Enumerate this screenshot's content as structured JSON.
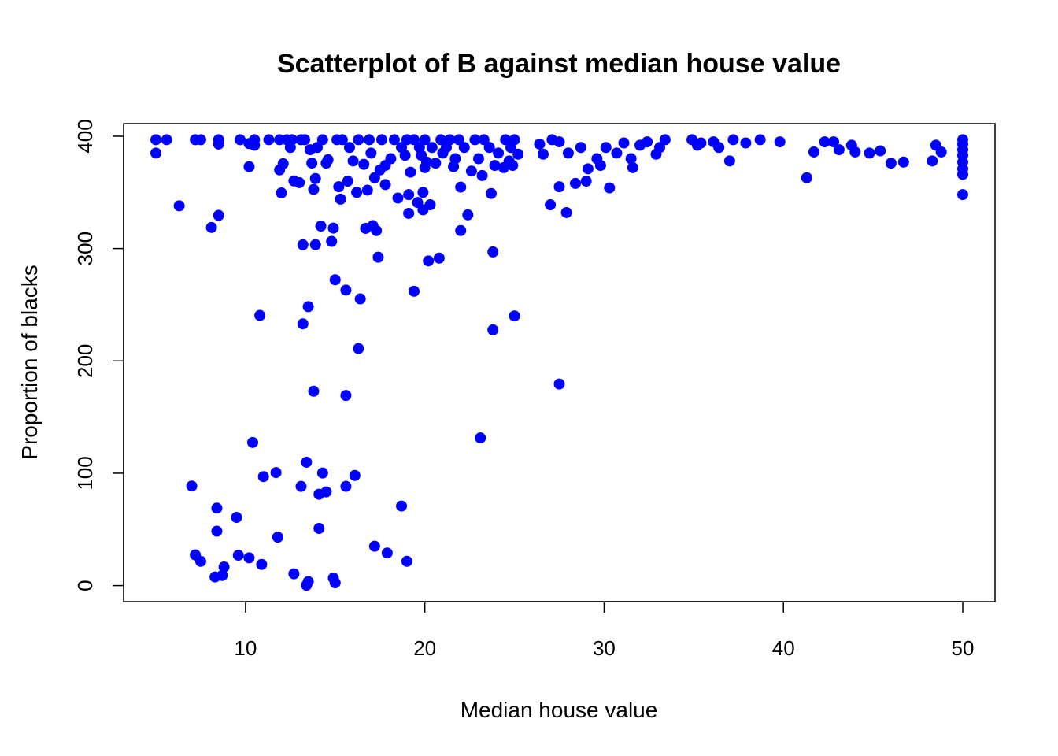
{
  "chart_data": {
    "type": "scatter",
    "title": "Scatterplot of B against median house value",
    "xlabel": "Median house value",
    "ylabel": "Proportion of blacks",
    "xlim": [
      3.2,
      51.8
    ],
    "ylim": [
      -14.3,
      411.2
    ],
    "xticks": [
      10,
      20,
      30,
      40,
      50
    ],
    "yticks": [
      0,
      100,
      200,
      300,
      400
    ],
    "grid": false,
    "legend": "none",
    "point_color": "#0000ff",
    "points": [
      [
        5.0,
        396.9
      ],
      [
        5.0,
        385.0
      ],
      [
        5.6,
        396.9
      ],
      [
        6.3,
        338.0
      ],
      [
        7.0,
        88.6
      ],
      [
        7.2,
        27.3
      ],
      [
        7.2,
        396.9
      ],
      [
        7.5,
        396.9
      ],
      [
        7.5,
        21.6
      ],
      [
        8.1,
        318.8
      ],
      [
        8.3,
        7.7
      ],
      [
        8.4,
        68.9
      ],
      [
        8.4,
        48.4
      ],
      [
        8.5,
        396.9
      ],
      [
        8.5,
        329.5
      ],
      [
        8.5,
        393.0
      ],
      [
        8.7,
        9.0
      ],
      [
        8.8,
        16.5
      ],
      [
        9.5,
        60.7
      ],
      [
        9.6,
        27.0
      ],
      [
        9.7,
        396.9
      ],
      [
        10.2,
        24.7
      ],
      [
        10.2,
        372.9
      ],
      [
        10.2,
        393.5
      ],
      [
        10.4,
        127.4
      ],
      [
        10.5,
        392.0
      ],
      [
        10.5,
        396.9
      ],
      [
        10.8,
        240.5
      ],
      [
        10.9,
        18.8
      ],
      [
        11.0,
        97.0
      ],
      [
        11.3,
        396.9
      ],
      [
        11.7,
        100.6
      ],
      [
        11.8,
        43.1
      ],
      [
        11.9,
        396.9
      ],
      [
        11.9,
        370.0
      ],
      [
        12.0,
        349.5
      ],
      [
        12.1,
        375.5
      ],
      [
        12.3,
        396.9
      ],
      [
        12.5,
        390.0
      ],
      [
        12.6,
        396.9
      ],
      [
        12.7,
        360.2
      ],
      [
        12.7,
        10.5
      ],
      [
        13.0,
        358.7
      ],
      [
        13.1,
        88.3
      ],
      [
        13.1,
        396.9
      ],
      [
        13.2,
        233.0
      ],
      [
        13.2,
        303.4
      ],
      [
        13.3,
        396.9
      ],
      [
        13.4,
        0.3
      ],
      [
        13.4,
        109.8
      ],
      [
        13.5,
        3.5
      ],
      [
        13.5,
        248.3
      ],
      [
        13.6,
        388.0
      ],
      [
        13.7,
        376.1
      ],
      [
        13.8,
        352.6
      ],
      [
        13.8,
        173.0
      ],
      [
        13.9,
        303.5
      ],
      [
        13.9,
        362.3
      ],
      [
        14.0,
        390.0
      ],
      [
        14.1,
        81.3
      ],
      [
        14.1,
        50.9
      ],
      [
        14.2,
        320.0
      ],
      [
        14.3,
        100.2
      ],
      [
        14.3,
        396.9
      ],
      [
        14.5,
        83.4
      ],
      [
        14.5,
        376.0
      ],
      [
        14.6,
        379.0
      ],
      [
        14.8,
        306.4
      ],
      [
        14.9,
        6.7
      ],
      [
        14.9,
        318.2
      ],
      [
        15.0,
        2.5
      ],
      [
        15.0,
        272.2
      ],
      [
        15.1,
        396.9
      ],
      [
        15.2,
        355.0
      ],
      [
        15.3,
        344.0
      ],
      [
        15.4,
        396.9
      ],
      [
        15.6,
        88.3
      ],
      [
        15.6,
        169.3
      ],
      [
        15.6,
        263.0
      ],
      [
        15.7,
        360.0
      ],
      [
        15.8,
        390.0
      ],
      [
        16.0,
        378.0
      ],
      [
        16.1,
        98.0
      ],
      [
        16.2,
        350.0
      ],
      [
        16.3,
        211.0
      ],
      [
        16.3,
        396.9
      ],
      [
        16.4,
        255.2
      ],
      [
        16.6,
        375.0
      ],
      [
        16.7,
        318.0
      ],
      [
        16.8,
        352.0
      ],
      [
        16.9,
        396.9
      ],
      [
        17.0,
        385.0
      ],
      [
        17.1,
        320.5
      ],
      [
        17.2,
        363.0
      ],
      [
        17.2,
        35.0
      ],
      [
        17.3,
        316.0
      ],
      [
        17.4,
        292.3
      ],
      [
        17.5,
        370.0
      ],
      [
        17.6,
        396.9
      ],
      [
        17.8,
        357.0
      ],
      [
        17.8,
        374.0
      ],
      [
        17.9,
        29.0
      ],
      [
        18.1,
        380.0
      ],
      [
        18.3,
        396.9
      ],
      [
        18.5,
        345.0
      ],
      [
        18.7,
        70.8
      ],
      [
        18.7,
        390.0
      ],
      [
        18.9,
        383.0
      ],
      [
        19.0,
        396.9
      ],
      [
        19.0,
        21.6
      ],
      [
        19.1,
        331.3
      ],
      [
        19.1,
        348.0
      ],
      [
        19.2,
        368.0
      ],
      [
        19.4,
        262.0
      ],
      [
        19.4,
        396.9
      ],
      [
        19.6,
        341.0
      ],
      [
        19.7,
        390.0
      ],
      [
        19.8,
        383.0
      ],
      [
        19.9,
        350.0
      ],
      [
        19.9,
        334.5
      ],
      [
        20.0,
        372.0
      ],
      [
        20.0,
        396.9
      ],
      [
        20.1,
        377.0
      ],
      [
        20.2,
        289.0
      ],
      [
        20.3,
        339.0
      ],
      [
        20.4,
        390.0
      ],
      [
        20.6,
        376.0
      ],
      [
        20.8,
        291.5
      ],
      [
        20.9,
        396.9
      ],
      [
        21.0,
        385.0
      ],
      [
        21.2,
        390.0
      ],
      [
        21.4,
        396.9
      ],
      [
        21.6,
        373.0
      ],
      [
        21.7,
        380.0
      ],
      [
        21.9,
        396.9
      ],
      [
        22.0,
        316.0
      ],
      [
        22.0,
        354.7
      ],
      [
        22.2,
        390.0
      ],
      [
        22.4,
        330.0
      ],
      [
        22.6,
        369.0
      ],
      [
        22.8,
        396.9
      ],
      [
        23.0,
        380.0
      ],
      [
        23.1,
        131.4
      ],
      [
        23.2,
        365.0
      ],
      [
        23.3,
        396.9
      ],
      [
        23.6,
        390.0
      ],
      [
        23.7,
        349.0
      ],
      [
        23.8,
        297.0
      ],
      [
        23.8,
        227.6
      ],
      [
        23.9,
        374.0
      ],
      [
        24.1,
        385.0
      ],
      [
        24.4,
        372.0
      ],
      [
        24.5,
        396.9
      ],
      [
        24.7,
        378.0
      ],
      [
        24.8,
        390.0
      ],
      [
        24.9,
        374.0
      ],
      [
        25.0,
        240.0
      ],
      [
        25.0,
        396.9
      ],
      [
        25.2,
        384.0
      ],
      [
        26.4,
        393.0
      ],
      [
        26.6,
        384.0
      ],
      [
        27.0,
        339.0
      ],
      [
        27.1,
        396.9
      ],
      [
        27.5,
        395.0
      ],
      [
        27.5,
        179.4
      ],
      [
        27.5,
        355.0
      ],
      [
        27.9,
        332.0
      ],
      [
        28.0,
        385.0
      ],
      [
        28.4,
        358.0
      ],
      [
        28.7,
        390.0
      ],
      [
        29.0,
        360.0
      ],
      [
        29.1,
        371.0
      ],
      [
        29.6,
        380.0
      ],
      [
        29.8,
        374.0
      ],
      [
        30.1,
        390.0
      ],
      [
        30.3,
        354.0
      ],
      [
        30.7,
        385.0
      ],
      [
        31.1,
        394.0
      ],
      [
        31.5,
        380.0
      ],
      [
        31.6,
        372.0
      ],
      [
        32.0,
        392.0
      ],
      [
        32.4,
        395.0
      ],
      [
        32.9,
        384.0
      ],
      [
        33.1,
        390.0
      ],
      [
        33.4,
        396.9
      ],
      [
        34.9,
        396.9
      ],
      [
        35.2,
        392.0
      ],
      [
        35.4,
        394.0
      ],
      [
        36.1,
        395.0
      ],
      [
        36.4,
        390.0
      ],
      [
        37.0,
        378.0
      ],
      [
        37.2,
        396.9
      ],
      [
        37.9,
        394.0
      ],
      [
        38.7,
        396.9
      ],
      [
        39.8,
        395.0
      ],
      [
        41.3,
        363.0
      ],
      [
        41.7,
        386.0
      ],
      [
        42.3,
        395.0
      ],
      [
        42.8,
        395.0
      ],
      [
        43.1,
        388.0
      ],
      [
        43.8,
        392.0
      ],
      [
        44.0,
        386.0
      ],
      [
        44.8,
        385.0
      ],
      [
        45.4,
        387.0
      ],
      [
        46.0,
        376.0
      ],
      [
        46.7,
        377.0
      ],
      [
        48.3,
        378.0
      ],
      [
        48.5,
        392.0
      ],
      [
        48.8,
        386.0
      ],
      [
        50.0,
        396.9
      ],
      [
        50.0,
        393.0
      ],
      [
        50.0,
        388.0
      ],
      [
        50.0,
        383.0
      ],
      [
        50.0,
        377.0
      ],
      [
        50.0,
        371.0
      ],
      [
        50.0,
        366.0
      ],
      [
        50.0,
        348.0
      ]
    ]
  }
}
